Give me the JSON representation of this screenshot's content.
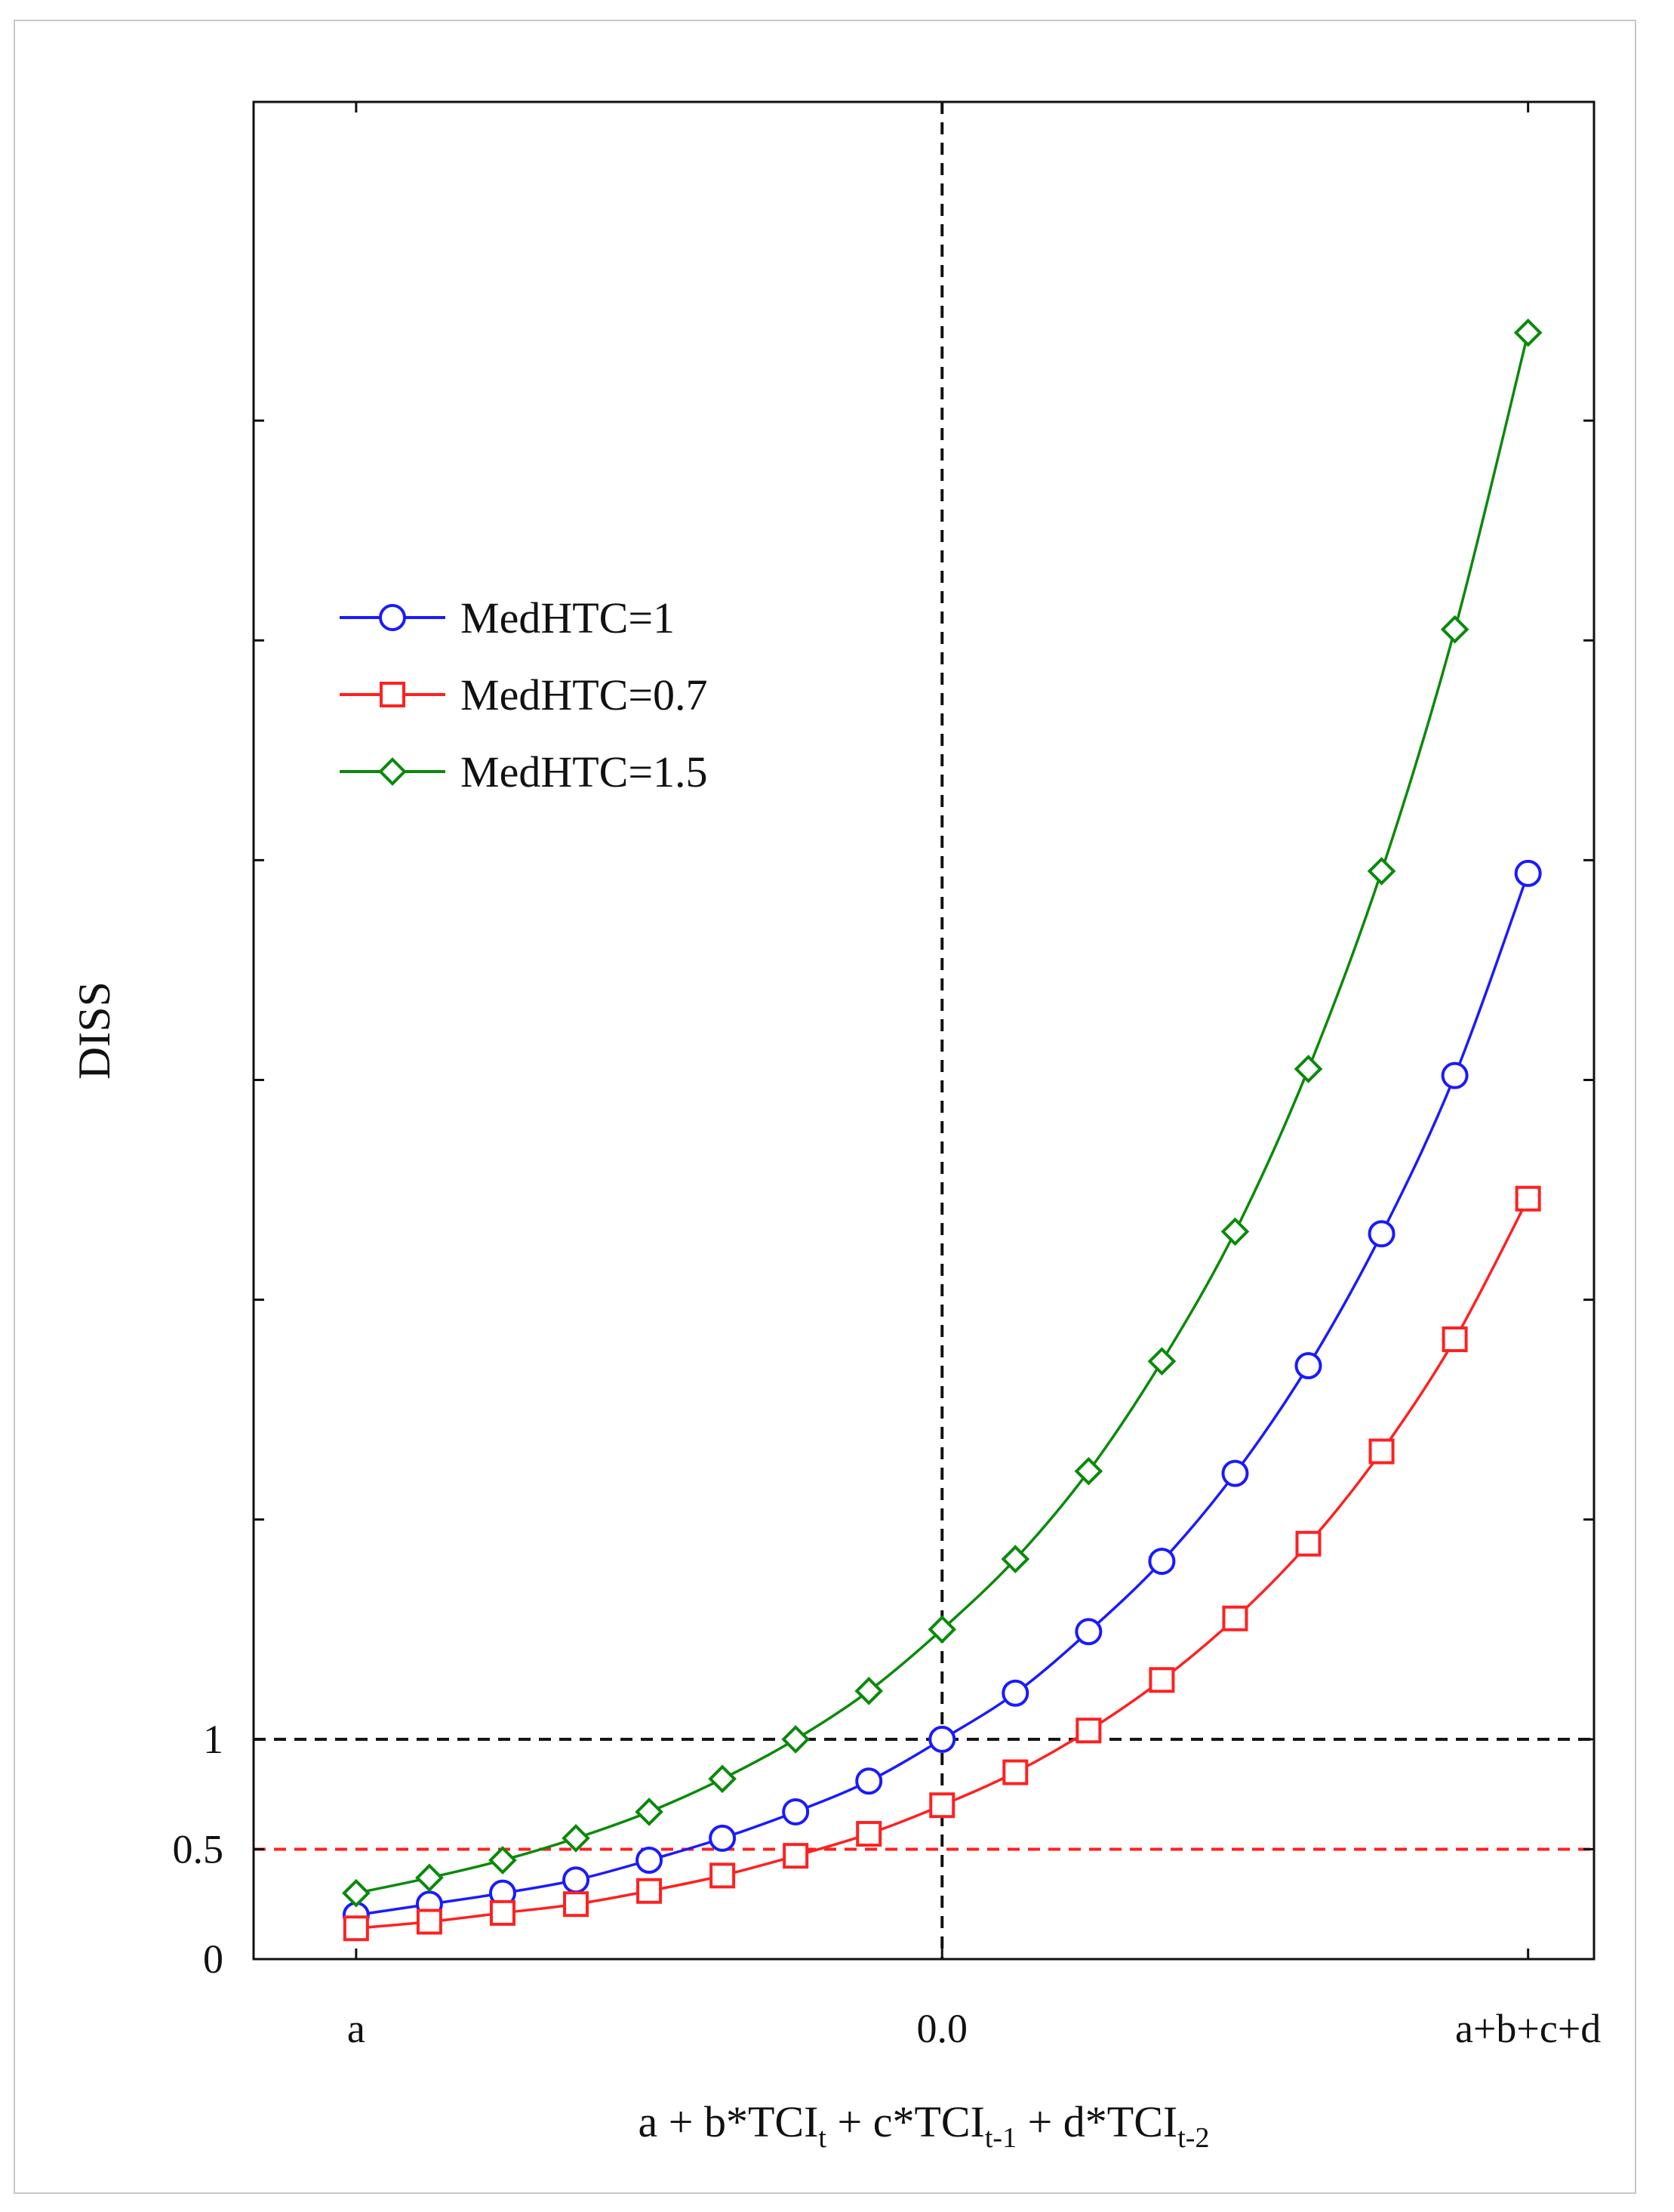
{
  "chart_data": {
    "type": "line",
    "title": "",
    "ylabel": "DISS",
    "xlabel": {
      "parts": [
        {
          "text": "a + b*TCI"
        },
        {
          "text": "t",
          "sub": true
        },
        {
          "text": " + c*TCI"
        },
        {
          "text": "t-1",
          "sub": true
        },
        {
          "text": " + d*TCI"
        },
        {
          "text": "t-2",
          "sub": true
        }
      ]
    },
    "x_ticks": [
      {
        "value": 0,
        "label": "a"
      },
      {
        "value": 8,
        "label": "0.0"
      },
      {
        "value": 16,
        "label": "a+b+c+d"
      }
    ],
    "xlim": [
      -1.4,
      16.9
    ],
    "ylim": [
      0,
      8.45
    ],
    "y_ticks": [
      {
        "value": 0,
        "label": "0"
      },
      {
        "value": 0.5,
        "label": "0.5"
      },
      {
        "value": 1,
        "label": "1"
      },
      {
        "value": 2,
        "label": ""
      },
      {
        "value": 3,
        "label": ""
      },
      {
        "value": 4,
        "label": ""
      },
      {
        "value": 5,
        "label": ""
      },
      {
        "value": 6,
        "label": ""
      },
      {
        "value": 7,
        "label": ""
      }
    ],
    "reference_lines": [
      {
        "orientation": "vertical",
        "value": 8,
        "color": "#111111",
        "name": "ref-line-x-zero"
      },
      {
        "orientation": "horizontal",
        "value": 1,
        "color": "#111111",
        "name": "ref-line-y-one"
      },
      {
        "orientation": "horizontal",
        "value": 0.5,
        "color": "#ff2020",
        "name": "ref-line-y-half"
      }
    ],
    "x": [
      0,
      1,
      2,
      3,
      4,
      5,
      6,
      7,
      8,
      9,
      10,
      11,
      12,
      13,
      14,
      15,
      16
    ],
    "series": [
      {
        "name": "MedHTC=1",
        "color": "#1a1aff",
        "marker": "circle",
        "values": [
          0.2,
          0.25,
          0.3,
          0.36,
          0.45,
          0.55,
          0.67,
          0.81,
          1.0,
          1.21,
          1.49,
          1.81,
          2.21,
          2.7,
          3.3,
          4.02,
          4.94
        ]
      },
      {
        "name": "MedHTC=0.7",
        "color": "#ff2020",
        "marker": "square",
        "values": [
          0.14,
          0.17,
          0.21,
          0.25,
          0.31,
          0.38,
          0.47,
          0.57,
          0.7,
          0.85,
          1.04,
          1.27,
          1.55,
          1.89,
          2.31,
          2.82,
          3.46
        ]
      },
      {
        "name": "MedHTC=1.5",
        "color": "#0a8a0a",
        "marker": "diamond",
        "values": [
          0.3,
          0.37,
          0.45,
          0.55,
          0.67,
          0.82,
          1.0,
          1.22,
          1.5,
          1.82,
          2.22,
          2.72,
          3.31,
          4.05,
          4.95,
          6.05,
          7.4
        ]
      }
    ],
    "legend": {
      "position": "upper-left"
    }
  }
}
